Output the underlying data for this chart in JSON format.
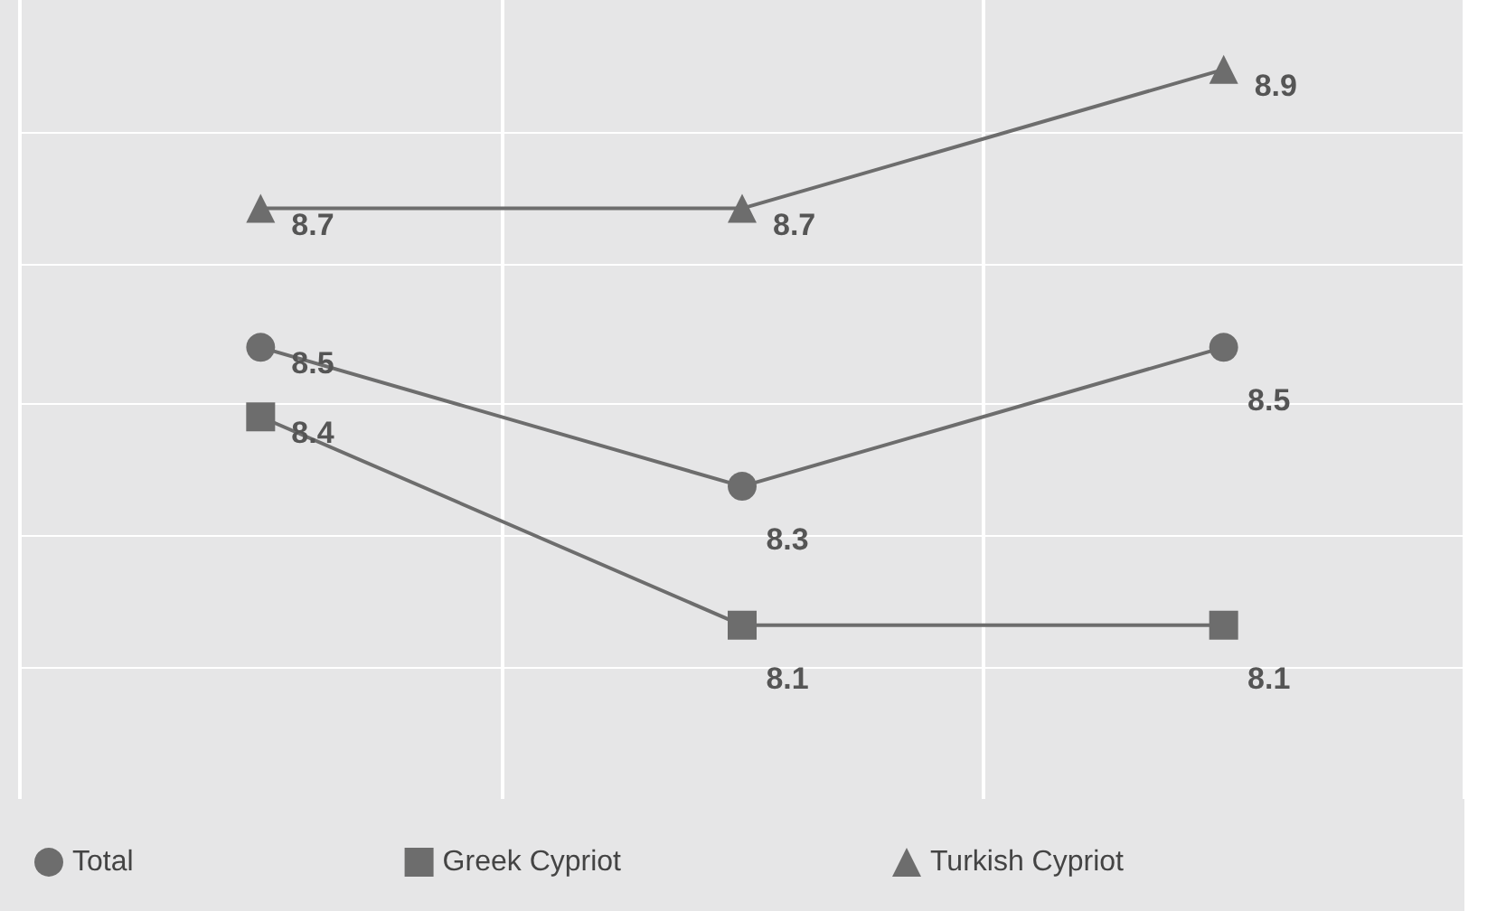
{
  "chart_data": {
    "type": "line",
    "categories": [
      null,
      null,
      null
    ],
    "series": [
      {
        "name": "Total",
        "color": "#6d6d6d",
        "marker": "circle",
        "values": [
          8.5,
          8.3,
          8.5
        ]
      },
      {
        "name": "Greek Cypriot",
        "color": "#6d6d6d",
        "marker": "square",
        "values": [
          8.4,
          8.1,
          8.1
        ]
      },
      {
        "name": "Turkish Cypriot",
        "color": "#6d6d6d",
        "marker": "triangle",
        "values": [
          8.7,
          8.7,
          8.9
        ]
      }
    ],
    "ylim": [
      7.85,
      9.0
    ],
    "yticks": [
      {
        "value": 8.04,
        "label": null
      },
      {
        "value": 8.23,
        "label": null
      },
      {
        "value": 8.42,
        "label": null
      },
      {
        "value": 8.62,
        "label": null
      },
      {
        "value": 8.81,
        "label": null
      }
    ],
    "grid": true,
    "legend": "bottom",
    "data_labels": true,
    "line_style": "solid"
  }
}
